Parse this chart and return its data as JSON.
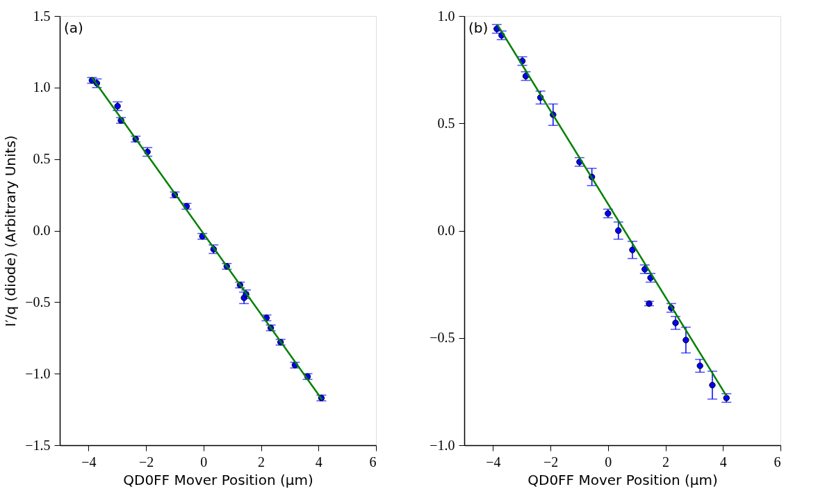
{
  "chart_data": [
    {
      "type": "scatter",
      "xlabel": "QD0FF Mover Position (μm)",
      "ylabel": "I′/q (diode) (Arbitrary Units)",
      "annotations": [
        "(a)"
      ],
      "xlim": [
        -5,
        6
      ],
      "xticks": [
        -4,
        -2,
        0,
        2,
        4,
        6
      ],
      "ylim": [
        -1.5,
        1.5
      ],
      "yticks": [
        {
          "value": -1.5,
          "label": "−1.5"
        },
        {
          "value": -1,
          "label": "−1.0"
        },
        {
          "value": -0.5,
          "label": "−0.5"
        },
        {
          "value": 0,
          "label": "0.0"
        },
        {
          "value": 0.5,
          "label": "0.5"
        },
        {
          "value": 1,
          "label": "1.0"
        },
        {
          "value": 1.5,
          "label": "1.5"
        }
      ],
      "grid": false,
      "marker": "circle",
      "series": [
        {
          "color": "#0000ff",
          "x": [
            -3.88,
            -3.71,
            -2.99,
            -2.87,
            -2.36,
            -1.95,
            -1.0,
            -0.59,
            -0.04,
            0.35,
            0.81,
            1.27,
            1.41,
            1.48,
            2.19,
            2.34,
            2.68,
            3.18,
            3.62,
            4.1
          ],
          "values": [
            1.05,
            1.03,
            0.87,
            0.77,
            0.64,
            0.55,
            0.25,
            0.17,
            -0.04,
            -0.13,
            -0.25,
            -0.38,
            -0.47,
            -0.445,
            -0.61,
            -0.68,
            -0.78,
            -0.94,
            -1.02,
            -1.17
          ],
          "errors": [
            0.02,
            0.03,
            0.03,
            0.02,
            0.02,
            0.03,
            0.02,
            0.02,
            0.02,
            0.03,
            0.02,
            0.02,
            0.04,
            0.03,
            0.02,
            0.02,
            0.02,
            0.02,
            0.02,
            0.02
          ]
        },
        {
          "type": "line",
          "color": "#008000",
          "line_style": "solid",
          "marker": "none",
          "x": [
            -3.88,
            4.12
          ],
          "values": [
            1.07,
            -1.18
          ]
        }
      ]
    },
    {
      "type": "scatter",
      "xlabel": "QD0FF Mover Position (μm)",
      "annotations": [
        "(b)"
      ],
      "xlim": [
        -5,
        6
      ],
      "xticks": [
        -4,
        -2,
        0,
        2,
        4,
        6
      ],
      "ylim": [
        -1.0,
        1.0
      ],
      "yticks": [
        {
          "value": -1,
          "label": "−1.0"
        },
        {
          "value": -0.5,
          "label": "−0.5"
        },
        {
          "value": 0,
          "label": "0.0"
        },
        {
          "value": 0.5,
          "label": "0.5"
        },
        {
          "value": 1,
          "label": "1.0"
        }
      ],
      "grid": false,
      "marker": "circle",
      "series": [
        {
          "color": "#0000ff",
          "x": [
            -3.87,
            -3.7,
            -2.98,
            -2.86,
            -2.35,
            -1.91,
            -0.99,
            -0.56,
            0.0,
            0.36,
            0.85,
            1.28,
            1.48,
            1.43,
            2.2,
            2.35,
            2.71,
            3.2,
            3.63,
            4.12
          ],
          "values": [
            0.94,
            0.91,
            0.79,
            0.72,
            0.62,
            0.54,
            0.32,
            0.25,
            0.08,
            0.0,
            -0.09,
            -0.18,
            -0.22,
            -0.34,
            -0.36,
            -0.43,
            -0.51,
            -0.63,
            -0.72,
            -0.78
          ],
          "errors": [
            0.02,
            0.02,
            0.02,
            0.02,
            0.03,
            0.05,
            0.02,
            0.04,
            0.02,
            0.04,
            0.04,
            0.02,
            0.02,
            0.01,
            0.02,
            0.03,
            0.06,
            0.03,
            0.065,
            0.02
          ]
        },
        {
          "type": "line",
          "color": "#008000",
          "line_style": "solid",
          "marker": "none",
          "x": [
            -3.85,
            4.12
          ],
          "values": [
            0.96,
            -0.77
          ]
        }
      ]
    }
  ]
}
